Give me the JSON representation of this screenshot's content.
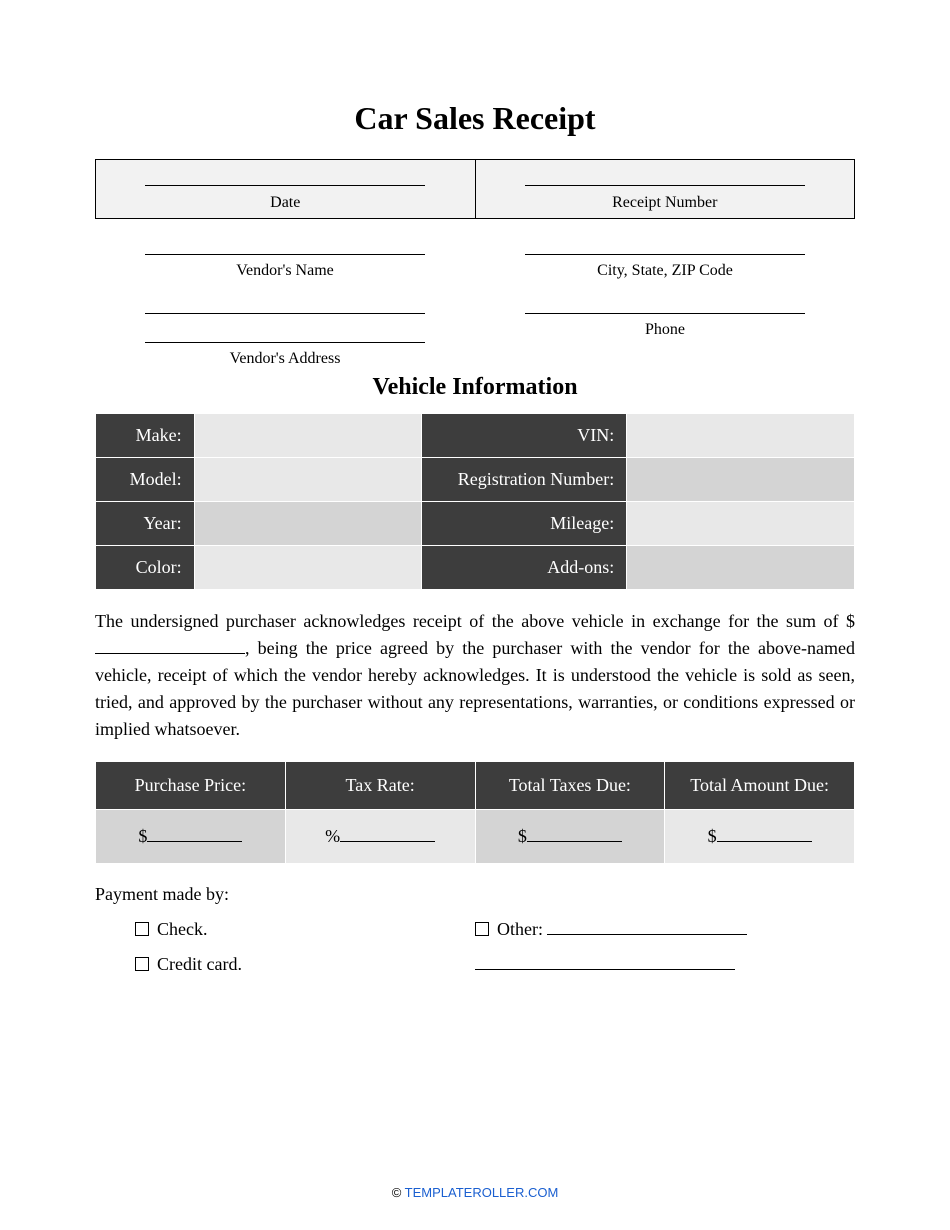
{
  "title": "Car Sales Receipt",
  "header": {
    "date_label": "Date",
    "receipt_label": "Receipt Number"
  },
  "vendor": {
    "name_label": "Vendor's Name",
    "city_label": "City, State, ZIP Code",
    "address_label": "Vendor's Address",
    "phone_label": "Phone"
  },
  "vehicle_section_title": "Vehicle Information",
  "vehicle_table": {
    "rows": [
      {
        "l1": "Make:",
        "l2": "VIN:",
        "shade1": "shade-lt",
        "shade2": "shade-lt"
      },
      {
        "l1": "Model:",
        "l2": "Registration Number:",
        "shade1": "shade-lt",
        "shade2": "shade-md"
      },
      {
        "l1": "Year:",
        "l2": "Mileage:",
        "shade1": "shade-md",
        "shade2": "shade-lt"
      },
      {
        "l1": "Color:",
        "l2": "Add-ons:",
        "shade1": "shade-lt",
        "shade2": "shade-md"
      }
    ],
    "label_bg": "#3d3d3d",
    "label_color": "#ffffff"
  },
  "body_text": {
    "part1": "The undersigned purchaser acknowledges receipt of the above vehicle in exchange for the sum of $",
    "part2": ", being the price agreed by the purchaser with the vendor for the above-named vehicle, receipt of which the vendor hereby acknowledges. It is understood the vehicle is sold as seen, tried, and approved by the purchaser without any representations, warranties, or conditions expressed or implied whatsoever."
  },
  "totals": {
    "headers": [
      "Purchase Price:",
      "Tax Rate:",
      "Total Taxes Due:",
      "Total Amount Due:"
    ],
    "prefixes": [
      "$",
      "%",
      "$",
      "$"
    ],
    "shades": [
      "shade-md",
      "shade-lt",
      "shade-md",
      "shade-lt"
    ]
  },
  "payment": {
    "label": "Payment made by:",
    "check": "Check.",
    "credit": "Credit card.",
    "other": "Other:"
  },
  "footer": {
    "copy": "© ",
    "link": "TEMPLATEROLLER.COM"
  }
}
